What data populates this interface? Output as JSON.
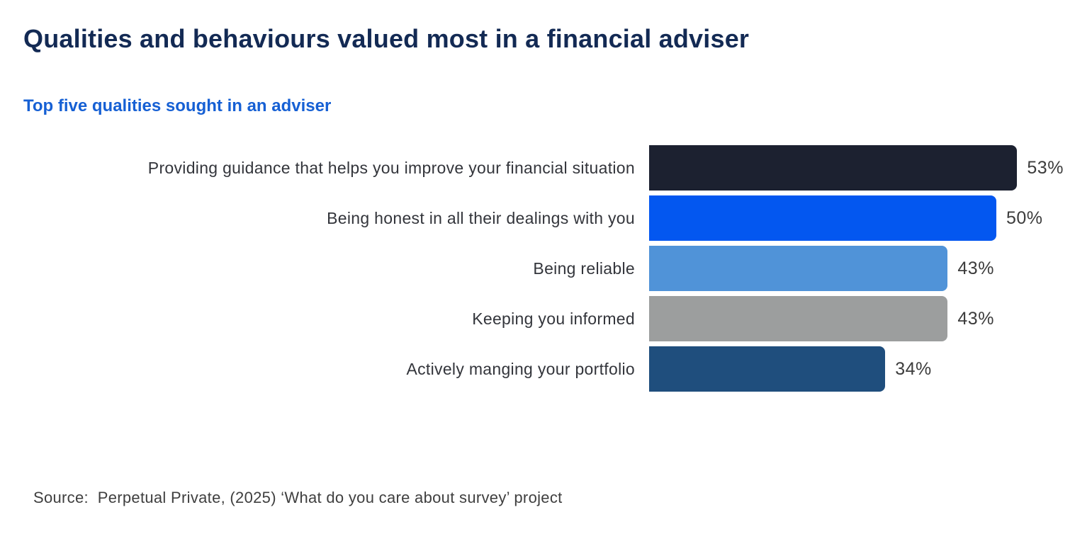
{
  "header": {
    "title": "Qualities and behaviours valued most in a financial adviser",
    "subtitle": "Top five qualities sought in an adviser"
  },
  "chart_data": {
    "type": "bar",
    "orientation": "horizontal",
    "title": "Qualities and behaviours valued most in a financial adviser",
    "subtitle": "Top five qualities sought in an adviser",
    "categories": [
      "Providing guidance that helps you improve your financial situation",
      "Being honest in all their dealings with you",
      "Being reliable",
      "Keeping you informed",
      "Actively manging your portfolio"
    ],
    "values": [
      53,
      50,
      43,
      43,
      34
    ],
    "value_labels": [
      "53%",
      "50%",
      "43%",
      "43%",
      "34%"
    ],
    "bar_colors": [
      "#1c2130",
      "#0357f0",
      "#5093d8",
      "#9c9e9e",
      "#1f4e7d"
    ],
    "xlabel": "",
    "ylabel": "",
    "xlim": [
      0,
      55
    ],
    "grid": false,
    "legend": false,
    "data_labels": "outside-end",
    "unit": "%"
  },
  "footer": {
    "source": "Source:  Perpetual Private, (2025) ‘What do you care about survey’ project"
  },
  "colors": {
    "background": "#ffffff",
    "title": "#132a54",
    "subtitle": "#1660d4",
    "label_text": "#33353b",
    "value_text": "#3c3c3c",
    "source_text": "#3f3f3f"
  }
}
